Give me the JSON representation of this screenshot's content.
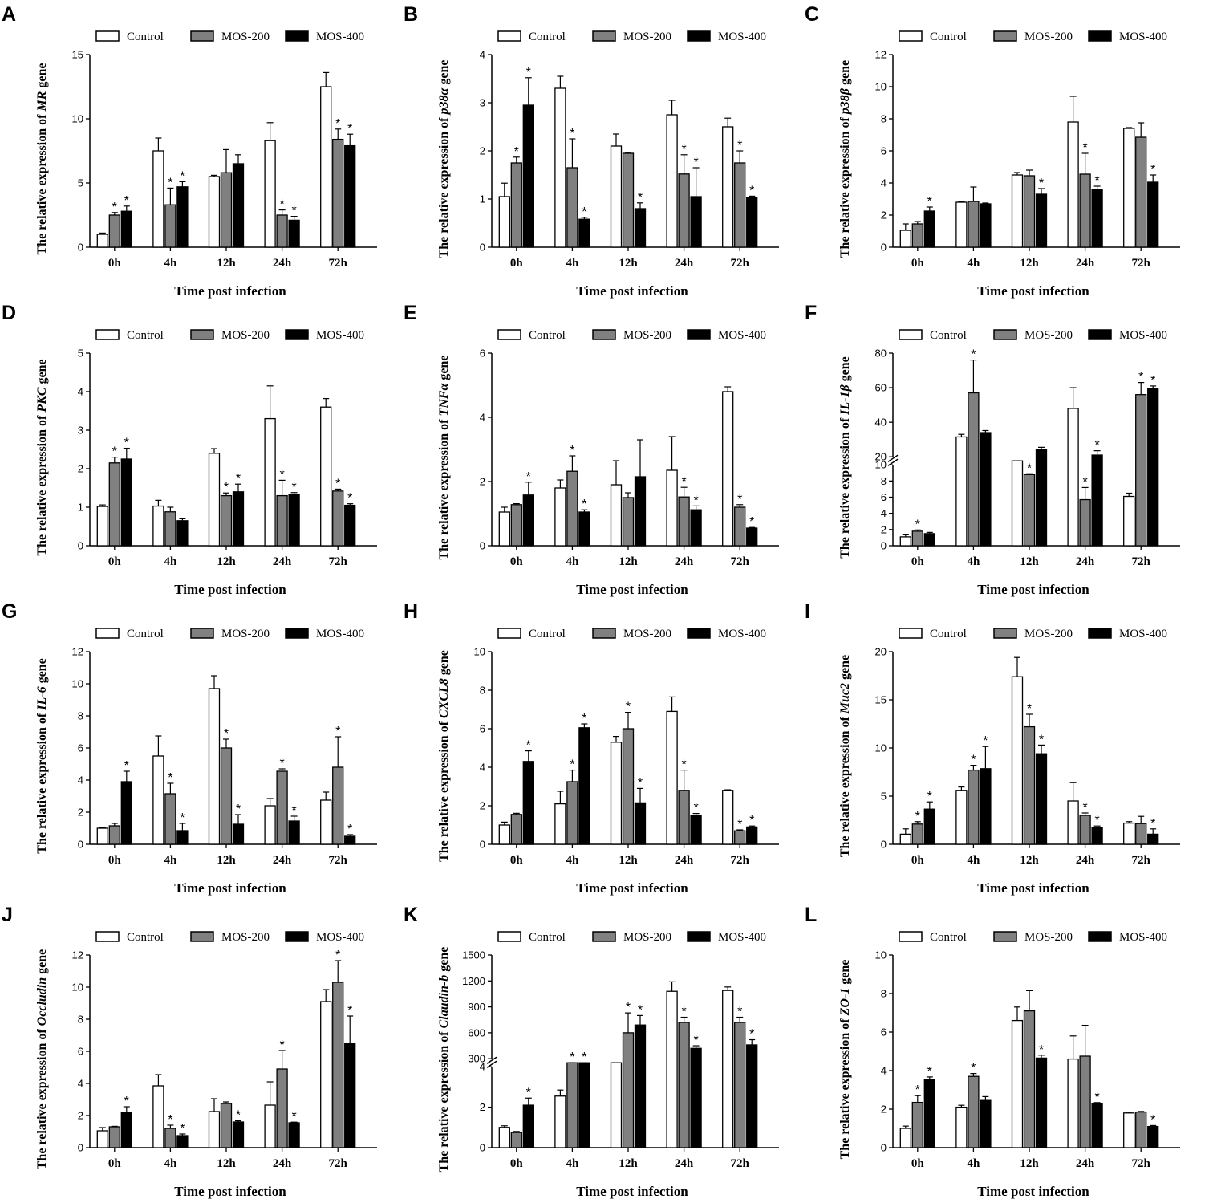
{
  "series_names": [
    "Control",
    "MOS-200",
    "MOS-400"
  ],
  "series_colors": [
    "#ffffff",
    "#808080",
    "#000000"
  ],
  "categories": [
    "0h",
    "4h",
    "12h",
    "24h",
    "72h"
  ],
  "chart_data": [
    {
      "type": "bar",
      "label": "A",
      "gene": "MR",
      "ylabel_pre": "The relative expression of ",
      "ylabel_post": " gene",
      "xlabel": "Time post infection",
      "ylim": [
        0,
        15
      ],
      "yticks": [
        "0",
        "5",
        "10",
        "15"
      ],
      "series": [
        {
          "name": "Control",
          "values": [
            1,
            7.5,
            5.5,
            8.3,
            12.5
          ],
          "errors": [
            0.1,
            1.0,
            0.1,
            1.4,
            1.1
          ]
        },
        {
          "name": "MOS-200",
          "values": [
            2.5,
            3.3,
            5.8,
            2.5,
            8.4
          ],
          "errors": [
            0.2,
            1.3,
            1.8,
            0.4,
            0.8
          ]
        },
        {
          "name": "MOS-400",
          "values": [
            2.8,
            4.7,
            6.5,
            2.1,
            7.9
          ],
          "errors": [
            0.4,
            0.4,
            0.7,
            0.3,
            0.9
          ]
        }
      ],
      "significance": [
        [
          0,
          0,
          0,
          0,
          0
        ],
        [
          1,
          1,
          0,
          1,
          1
        ],
        [
          1,
          1,
          0,
          1,
          1
        ]
      ]
    },
    {
      "type": "bar",
      "label": "B",
      "gene": "p38α",
      "ylabel_pre": "The relative expression of ",
      "ylabel_post": " gene",
      "xlabel": "Time post infection",
      "ylim": [
        0,
        4
      ],
      "yticks": [
        "0",
        "1",
        "2",
        "3",
        "4"
      ],
      "series": [
        {
          "name": "Control",
          "values": [
            1.05,
            3.3,
            2.1,
            2.75,
            2.5
          ],
          "errors": [
            0.28,
            0.25,
            0.25,
            0.3,
            0.18
          ]
        },
        {
          "name": "MOS-200",
          "values": [
            1.75,
            1.65,
            1.95,
            1.52,
            1.75
          ],
          "errors": [
            0.12,
            0.6,
            0.02,
            0.4,
            0.25
          ]
        },
        {
          "name": "MOS-400",
          "values": [
            2.95,
            0.58,
            0.8,
            1.05,
            1.03
          ],
          "errors": [
            0.57,
            0.04,
            0.12,
            0.6,
            0.03
          ]
        }
      ],
      "significance": [
        [
          0,
          0,
          0,
          0,
          0
        ],
        [
          1,
          1,
          0,
          1,
          1
        ],
        [
          1,
          1,
          1,
          1,
          1
        ]
      ]
    },
    {
      "type": "bar",
      "label": "C",
      "gene": "p38β",
      "ylabel_pre": "The relative expression of ",
      "ylabel_post": " gene",
      "xlabel": "Time post infection",
      "ylim": [
        0,
        12
      ],
      "yticks": [
        "0",
        "2",
        "4",
        "6",
        "8",
        "10",
        "12"
      ],
      "series": [
        {
          "name": "Control",
          "values": [
            1.05,
            2.8,
            4.5,
            7.8,
            7.4
          ],
          "errors": [
            0.4,
            0.05,
            0.15,
            1.6,
            0.05
          ]
        },
        {
          "name": "MOS-200",
          "values": [
            1.45,
            2.85,
            4.45,
            4.55,
            6.85
          ],
          "errors": [
            0.15,
            0.9,
            0.35,
            1.3,
            0.9
          ]
        },
        {
          "name": "MOS-400",
          "values": [
            2.25,
            2.7,
            3.3,
            3.6,
            4.05
          ],
          "errors": [
            0.25,
            0.05,
            0.35,
            0.2,
            0.45
          ]
        }
      ],
      "significance": [
        [
          0,
          0,
          0,
          0,
          0
        ],
        [
          0,
          0,
          0,
          1,
          0
        ],
        [
          1,
          0,
          1,
          1,
          1
        ]
      ]
    },
    {
      "type": "bar",
      "label": "D",
      "gene": "PKC",
      "ylabel_pre": "The relative expression of ",
      "ylabel_post": " gene",
      "xlabel": "Time post infection",
      "ylim": [
        0,
        5
      ],
      "yticks": [
        "0",
        "1",
        "2",
        "3",
        "4",
        "5"
      ],
      "series": [
        {
          "name": "Control",
          "values": [
            1.02,
            1.03,
            2.4,
            3.3,
            3.6
          ],
          "errors": [
            0.04,
            0.15,
            0.12,
            0.85,
            0.22
          ]
        },
        {
          "name": "MOS-200",
          "values": [
            2.15,
            0.88,
            1.3,
            1.3,
            1.42
          ],
          "errors": [
            0.15,
            0.12,
            0.07,
            0.4,
            0.05
          ]
        },
        {
          "name": "MOS-400",
          "values": [
            2.25,
            0.65,
            1.4,
            1.32,
            1.05
          ],
          "errors": [
            0.28,
            0.05,
            0.2,
            0.06,
            0.04
          ]
        }
      ],
      "significance": [
        [
          0,
          0,
          0,
          0,
          0
        ],
        [
          1,
          0,
          1,
          1,
          1
        ],
        [
          1,
          0,
          1,
          1,
          1
        ]
      ]
    },
    {
      "type": "bar",
      "label": "E",
      "gene": "TNFα",
      "ylabel_pre": "The relative expression of ",
      "ylabel_post": " gene",
      "xlabel": "Time post infection",
      "ylim": [
        0,
        6
      ],
      "yticks": [
        "0",
        "2",
        "4",
        "6"
      ],
      "series": [
        {
          "name": "Control",
          "values": [
            1.05,
            1.8,
            1.9,
            2.35,
            4.8
          ],
          "errors": [
            0.15,
            0.25,
            0.75,
            1.05,
            0.15
          ]
        },
        {
          "name": "MOS-200",
          "values": [
            1.28,
            2.32,
            1.5,
            1.52,
            1.2
          ],
          "errors": [
            0.03,
            0.48,
            0.15,
            0.3,
            0.08
          ]
        },
        {
          "name": "MOS-400",
          "values": [
            1.58,
            1.05,
            2.15,
            1.12,
            0.55
          ],
          "errors": [
            0.4,
            0.07,
            1.15,
            0.12,
            0.02
          ]
        }
      ],
      "significance": [
        [
          0,
          0,
          0,
          0,
          0
        ],
        [
          0,
          1,
          0,
          1,
          1
        ],
        [
          1,
          1,
          0,
          1,
          1
        ]
      ]
    },
    {
      "type": "bar",
      "label": "F",
      "gene": "IL-1β",
      "ylabel_pre": "The relative expression of ",
      "ylabel_post": " gene",
      "xlabel": "Time post infection",
      "ylim": [
        0,
        80
      ],
      "yticks": [
        "0",
        "2",
        "4",
        "6",
        "8",
        "10",
        "20",
        "40",
        "60",
        "80"
      ],
      "axis_break": [
        10,
        20
      ],
      "series": [
        {
          "name": "Control",
          "values": [
            1.1,
            31.5,
            16.5,
            48,
            6.1
          ],
          "errors": [
            0.25,
            1.5,
            1.0,
            12,
            0.4
          ]
        },
        {
          "name": "MOS-200",
          "values": [
            1.8,
            57,
            8.8,
            5.7,
            56
          ],
          "errors": [
            0.15,
            19,
            0.1,
            1.5,
            7
          ]
        },
        {
          "name": "MOS-400",
          "values": [
            1.5,
            34,
            24,
            21,
            59.5
          ],
          "errors": [
            0.15,
            1.2,
            1.5,
            2.5,
            1.5
          ]
        }
      ],
      "significance": [
        [
          0,
          0,
          0,
          0,
          0
        ],
        [
          1,
          1,
          1,
          1,
          1
        ],
        [
          0,
          0,
          0,
          1,
          1
        ]
      ]
    },
    {
      "type": "bar",
      "label": "G",
      "gene": "IL-6",
      "ylabel_pre": "The relative expression of ",
      "ylabel_post": " gene",
      "xlabel": "Time post infection",
      "ylim": [
        0,
        12
      ],
      "yticks": [
        "0",
        "2",
        "4",
        "6",
        "8",
        "10",
        "12"
      ],
      "series": [
        {
          "name": "Control",
          "values": [
            1.0,
            5.5,
            9.7,
            2.4,
            2.75
          ],
          "errors": [
            0.05,
            1.25,
            0.8,
            0.45,
            0.5
          ]
        },
        {
          "name": "MOS-200",
          "values": [
            1.15,
            3.15,
            6.0,
            4.55,
            4.8
          ],
          "errors": [
            0.15,
            0.65,
            0.55,
            0.15,
            1.9
          ]
        },
        {
          "name": "MOS-400",
          "values": [
            3.9,
            0.85,
            1.25,
            1.45,
            0.5
          ],
          "errors": [
            0.65,
            0.45,
            0.6,
            0.3,
            0.1
          ]
        }
      ],
      "significance": [
        [
          0,
          0,
          0,
          0,
          0
        ],
        [
          0,
          1,
          1,
          1,
          1
        ],
        [
          1,
          1,
          1,
          1,
          1
        ]
      ]
    },
    {
      "type": "bar",
      "label": "H",
      "gene": "CXCL8",
      "ylabel_pre": "The relative expression of ",
      "ylabel_post": " gene",
      "xlabel": "Time post infection",
      "ylim": [
        0,
        10
      ],
      "yticks": [
        "0",
        "2",
        "4",
        "6",
        "8",
        "10"
      ],
      "series": [
        {
          "name": "Control",
          "values": [
            1.0,
            2.1,
            5.3,
            6.9,
            2.8
          ],
          "errors": [
            0.15,
            0.65,
            0.3,
            0.75,
            0.03
          ]
        },
        {
          "name": "MOS-200",
          "values": [
            1.55,
            3.25,
            6.0,
            2.8,
            0.7
          ],
          "errors": [
            0.06,
            0.6,
            0.85,
            1.05,
            0.05
          ]
        },
        {
          "name": "MOS-400",
          "values": [
            4.3,
            6.05,
            2.15,
            1.5,
            0.9
          ],
          "errors": [
            0.55,
            0.2,
            0.75,
            0.1,
            0.05
          ]
        }
      ],
      "significance": [
        [
          0,
          0,
          0,
          0,
          0
        ],
        [
          0,
          1,
          1,
          1,
          1
        ],
        [
          1,
          1,
          1,
          1,
          1
        ]
      ]
    },
    {
      "type": "bar",
      "label": "I",
      "gene": "Muc2",
      "ylabel_pre": "The relative expression of ",
      "ylabel_post": " gene",
      "xlabel": "Time post infection",
      "ylim": [
        0,
        20
      ],
      "yticks": [
        "0",
        "5",
        "10",
        "15",
        "20"
      ],
      "series": [
        {
          "name": "Control",
          "values": [
            1.05,
            5.6,
            17.4,
            4.5,
            2.2
          ],
          "errors": [
            0.55,
            0.35,
            2.0,
            1.9,
            0.15
          ]
        },
        {
          "name": "MOS-200",
          "values": [
            2.1,
            7.7,
            12.2,
            3.0,
            2.15
          ],
          "errors": [
            0.25,
            0.5,
            1.3,
            0.25,
            0.75
          ]
        },
        {
          "name": "MOS-400",
          "values": [
            3.65,
            7.85,
            9.4,
            1.75,
            1.05
          ],
          "errors": [
            0.75,
            2.3,
            0.9,
            0.15,
            0.55
          ]
        }
      ],
      "significance": [
        [
          0,
          0,
          0,
          0,
          0
        ],
        [
          1,
          1,
          1,
          1,
          0
        ],
        [
          1,
          1,
          1,
          1,
          1
        ]
      ]
    },
    {
      "type": "bar",
      "label": "J",
      "gene": "Occludin",
      "ylabel_pre": "The relative expression of ",
      "ylabel_post": " gene",
      "xlabel": "Time post infection",
      "ylim": [
        0,
        12
      ],
      "yticks": [
        "0",
        "2",
        "4",
        "6",
        "8",
        "10",
        "12"
      ],
      "series": [
        {
          "name": "Control",
          "values": [
            1.05,
            3.85,
            2.25,
            2.65,
            9.1
          ],
          "errors": [
            0.2,
            0.7,
            0.8,
            1.45,
            0.75
          ]
        },
        {
          "name": "MOS-200",
          "values": [
            1.3,
            1.2,
            2.75,
            4.9,
            10.3
          ],
          "errors": [
            0.03,
            0.2,
            0.1,
            1.15,
            1.35
          ]
        },
        {
          "name": "MOS-400",
          "values": [
            2.2,
            0.75,
            1.6,
            1.55,
            6.5
          ],
          "errors": [
            0.35,
            0.1,
            0.07,
            0.04,
            1.7
          ]
        }
      ],
      "significance": [
        [
          0,
          0,
          0,
          0,
          0
        ],
        [
          0,
          1,
          0,
          1,
          1
        ],
        [
          1,
          1,
          1,
          1,
          1
        ]
      ]
    },
    {
      "type": "bar",
      "label": "K",
      "gene": "Claudin-b",
      "ylabel_pre": "The relative expression of ",
      "ylabel_post": " gene",
      "xlabel": "Time post infection",
      "ylim": [
        0,
        1500
      ],
      "yticks": [
        "0",
        "2",
        "4",
        "300",
        "600",
        "900",
        "1200",
        "1500"
      ],
      "axis_break": [
        4,
        300
      ],
      "series": [
        {
          "name": "Control",
          "values": [
            1.0,
            2.55,
            150,
            1080,
            1090
          ],
          "errors": [
            0.08,
            0.3,
            100,
            110,
            40
          ]
        },
        {
          "name": "MOS-200",
          "values": [
            0.75,
            80,
            600,
            720,
            720
          ],
          "errors": [
            0.05,
            30,
            230,
            60,
            60
          ]
        },
        {
          "name": "MOS-400",
          "values": [
            2.1,
            10,
            690,
            420,
            460
          ],
          "errors": [
            0.35,
            5,
            110,
            30,
            60
          ]
        }
      ],
      "significance": [
        [
          0,
          0,
          0,
          0,
          0
        ],
        [
          0,
          1,
          1,
          1,
          1
        ],
        [
          1,
          1,
          1,
          1,
          1
        ]
      ]
    },
    {
      "type": "bar",
      "label": "L",
      "gene": "ZO-1",
      "ylabel_pre": "The relative expression of ",
      "ylabel_post": " gene",
      "xlabel": "Time post infection",
      "ylim": [
        0,
        10
      ],
      "yticks": [
        "0",
        "2",
        "4",
        "6",
        "8",
        "10"
      ],
      "series": [
        {
          "name": "Control",
          "values": [
            1.0,
            2.1,
            6.6,
            4.6,
            1.8
          ],
          "errors": [
            0.12,
            0.1,
            0.7,
            1.2,
            0.05
          ]
        },
        {
          "name": "MOS-200",
          "values": [
            2.35,
            3.7,
            7.1,
            4.75,
            1.85
          ],
          "errors": [
            0.35,
            0.15,
            1.05,
            1.6,
            0.03
          ]
        },
        {
          "name": "MOS-400",
          "values": [
            3.55,
            2.45,
            4.65,
            2.3,
            1.1
          ],
          "errors": [
            0.12,
            0.2,
            0.15,
            0.04,
            0.05
          ]
        }
      ],
      "significance": [
        [
          0,
          0,
          0,
          0,
          0
        ],
        [
          1,
          1,
          0,
          0,
          0
        ],
        [
          1,
          0,
          1,
          1,
          1
        ]
      ]
    }
  ]
}
